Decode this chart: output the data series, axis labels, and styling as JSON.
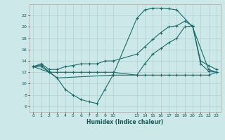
{
  "xlabel": "Humidex (Indice chaleur)",
  "background_color": "#cde8e8",
  "grid_color": "#b0d0d0",
  "line_color": "#1a6b6b",
  "xlim": [
    0,
    23
  ],
  "ylim": [
    5,
    24
  ],
  "xticks": [
    0,
    1,
    2,
    3,
    4,
    5,
    6,
    7,
    8,
    9,
    10,
    13,
    14,
    15,
    16,
    17,
    18,
    19,
    20,
    21,
    22,
    23
  ],
  "yticks": [
    6,
    8,
    10,
    12,
    14,
    16,
    18,
    20,
    22
  ],
  "line1_x": [
    0,
    1,
    2,
    3,
    4,
    5,
    6,
    7,
    8,
    9,
    10,
    13,
    14,
    15,
    16,
    17,
    18,
    19,
    20,
    21,
    22,
    23
  ],
  "line1_y": [
    13,
    13.3,
    12.1,
    11.0,
    9.0,
    8.0,
    7.2,
    6.8,
    6.5,
    9.0,
    11.5,
    11.5,
    13.5,
    15.2,
    16.2,
    17.2,
    18.0,
    20.0,
    20.2,
    13.5,
    12.2,
    12.0
  ],
  "line2_x": [
    0,
    1,
    2,
    3,
    4,
    5,
    6,
    7,
    8,
    9,
    10,
    13,
    14,
    15,
    16,
    17,
    18,
    19,
    20,
    21,
    22,
    23
  ],
  "line2_y": [
    13.0,
    13.0,
    12.0,
    12.0,
    12.0,
    12.0,
    12.0,
    12.0,
    12.0,
    12.0,
    12.0,
    11.5,
    11.5,
    11.5,
    11.5,
    11.5,
    11.5,
    11.5,
    11.5,
    11.5,
    11.5,
    12.0
  ],
  "line3_x": [
    0,
    1,
    2,
    3,
    4,
    5,
    6,
    7,
    8,
    9,
    10,
    13,
    14,
    15,
    16,
    17,
    18,
    19,
    20,
    21,
    22,
    23
  ],
  "line3_y": [
    13.0,
    13.5,
    12.5,
    12.5,
    13.0,
    13.2,
    13.5,
    13.5,
    13.5,
    14.0,
    14.0,
    15.2,
    16.5,
    17.8,
    19.0,
    20.0,
    20.2,
    21.0,
    20.2,
    14.0,
    13.2,
    12.5
  ],
  "line4_x": [
    0,
    2,
    3,
    10,
    13,
    14,
    15,
    16,
    17,
    18,
    20,
    22,
    23
  ],
  "line4_y": [
    13.0,
    12.0,
    11.0,
    11.5,
    21.5,
    23.0,
    23.3,
    23.3,
    23.2,
    23.0,
    20.0,
    12.5,
    12.0
  ]
}
